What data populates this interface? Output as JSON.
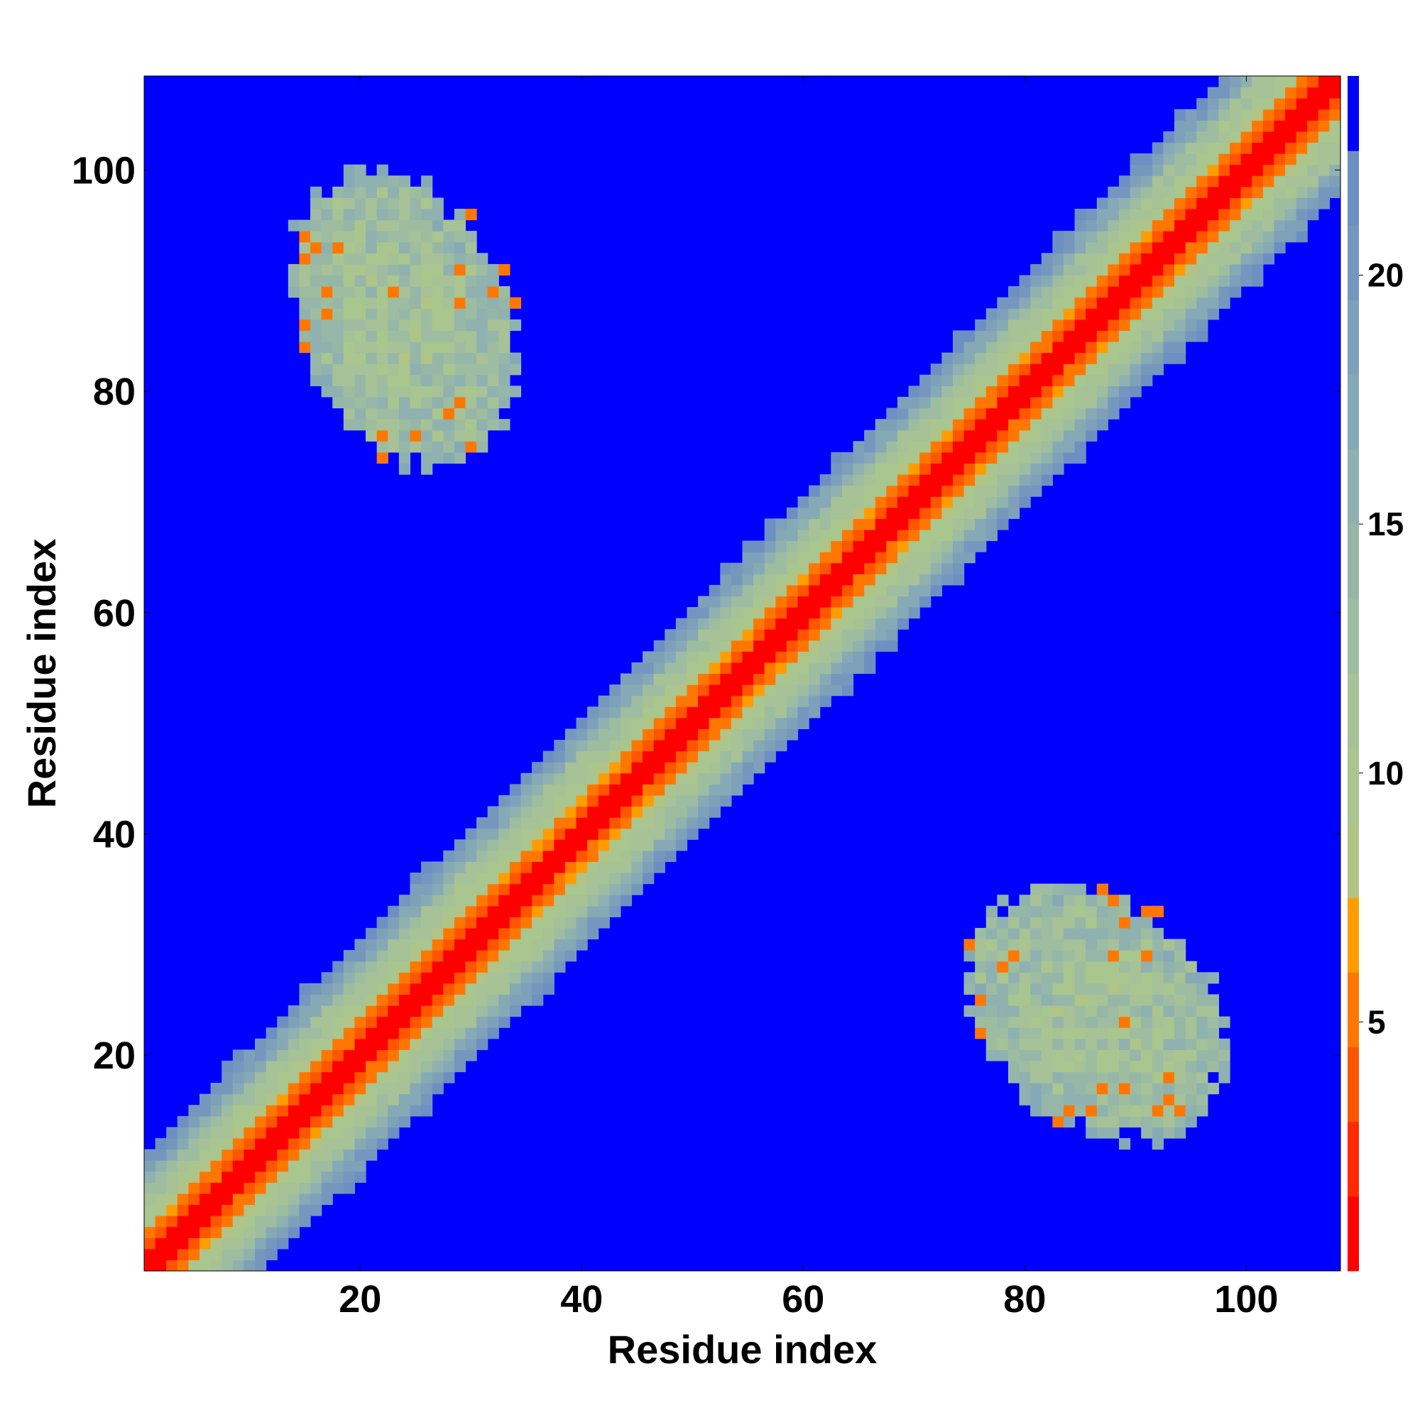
{
  "chart_data": {
    "type": "heatmap",
    "title": "",
    "xlabel": "Residue index",
    "ylabel": "Residue index",
    "xlim": [
      1,
      108
    ],
    "ylim": [
      1,
      108
    ],
    "x_ticks": [
      20,
      40,
      60,
      80,
      100
    ],
    "y_ticks": [
      20,
      40,
      60,
      80,
      100
    ],
    "grid": false,
    "values_description": "distance map; value grows with |i - j| away from the diagonal, off-contact background at the maximum",
    "diagonal_band": {
      "near_zero_offset": [
        0,
        1
      ],
      "orange_offset_max": 3,
      "green_offset_max": 7,
      "blue_grey_offset_max": 10
    },
    "off_diagonal_contacts": [
      {
        "x_range": [
          14,
          34
        ],
        "y_range": [
          75,
          98
        ],
        "min_value": 6,
        "typical_value": 12
      },
      {
        "x_range": [
          75,
          98
        ],
        "y_range": [
          14,
          34
        ],
        "min_value": 6,
        "typical_value": 12
      }
    ],
    "colorbar": {
      "ticks": [
        5,
        10,
        15,
        20
      ],
      "range": [
        0,
        24
      ],
      "stops": [
        {
          "max": 1.5,
          "color": "#ff0000"
        },
        {
          "max": 3,
          "color": "#ff2a00"
        },
        {
          "max": 4.5,
          "color": "#ff5500"
        },
        {
          "max": 6,
          "color": "#ff7700"
        },
        {
          "max": 7.5,
          "color": "#ff9d00"
        },
        {
          "max": 9,
          "color": "#b1c486"
        },
        {
          "max": 10.5,
          "color": "#a9c68e"
        },
        {
          "max": 12,
          "color": "#a6c296"
        },
        {
          "max": 13.5,
          "color": "#9ebda0"
        },
        {
          "max": 15,
          "color": "#96b7a8"
        },
        {
          "max": 16.5,
          "color": "#8fb1b0"
        },
        {
          "max": 18,
          "color": "#86a9b6"
        },
        {
          "max": 19.5,
          "color": "#7fa0b9"
        },
        {
          "max": 21,
          "color": "#7597be"
        },
        {
          "max": 22.5,
          "color": "#6d8fc2"
        },
        {
          "max": 24,
          "color": "#0000ff"
        }
      ]
    }
  }
}
